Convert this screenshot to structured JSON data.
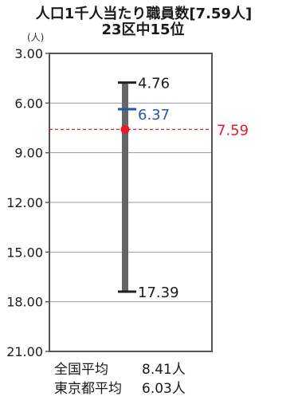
{
  "chart_data": {
    "type": "range",
    "title": "人口1千人当たり職員数[7.59人]",
    "subtitle": "23区中15位",
    "ylabel": "(人)",
    "ylim": [
      3.0,
      21.0
    ],
    "y_inverted": true,
    "yticks": [
      3.0,
      6.0,
      9.0,
      12.0,
      15.0,
      18.0,
      21.0
    ],
    "ytick_labels": [
      "3.00",
      "6.00",
      "9.00",
      "12.00",
      "15.00",
      "18.00",
      "21.00"
    ],
    "grid": true,
    "range": {
      "min": 4.76,
      "max": 17.39,
      "min_label": "4.76",
      "max_label": "17.39"
    },
    "tokyo_average": {
      "value": 6.37,
      "label": "6.37"
    },
    "value": {
      "value": 7.59,
      "label": "7.59"
    },
    "colors": {
      "range": "#666666",
      "tokyo_average": "#1f5aa6",
      "value": "#e8192c",
      "axis": "#555555",
      "grid": "#9a9a9a"
    }
  },
  "footer": {
    "rows": [
      {
        "label": "全国平均",
        "value": "8.41人"
      },
      {
        "label": "東京都平均",
        "value": "6.03人"
      }
    ]
  }
}
